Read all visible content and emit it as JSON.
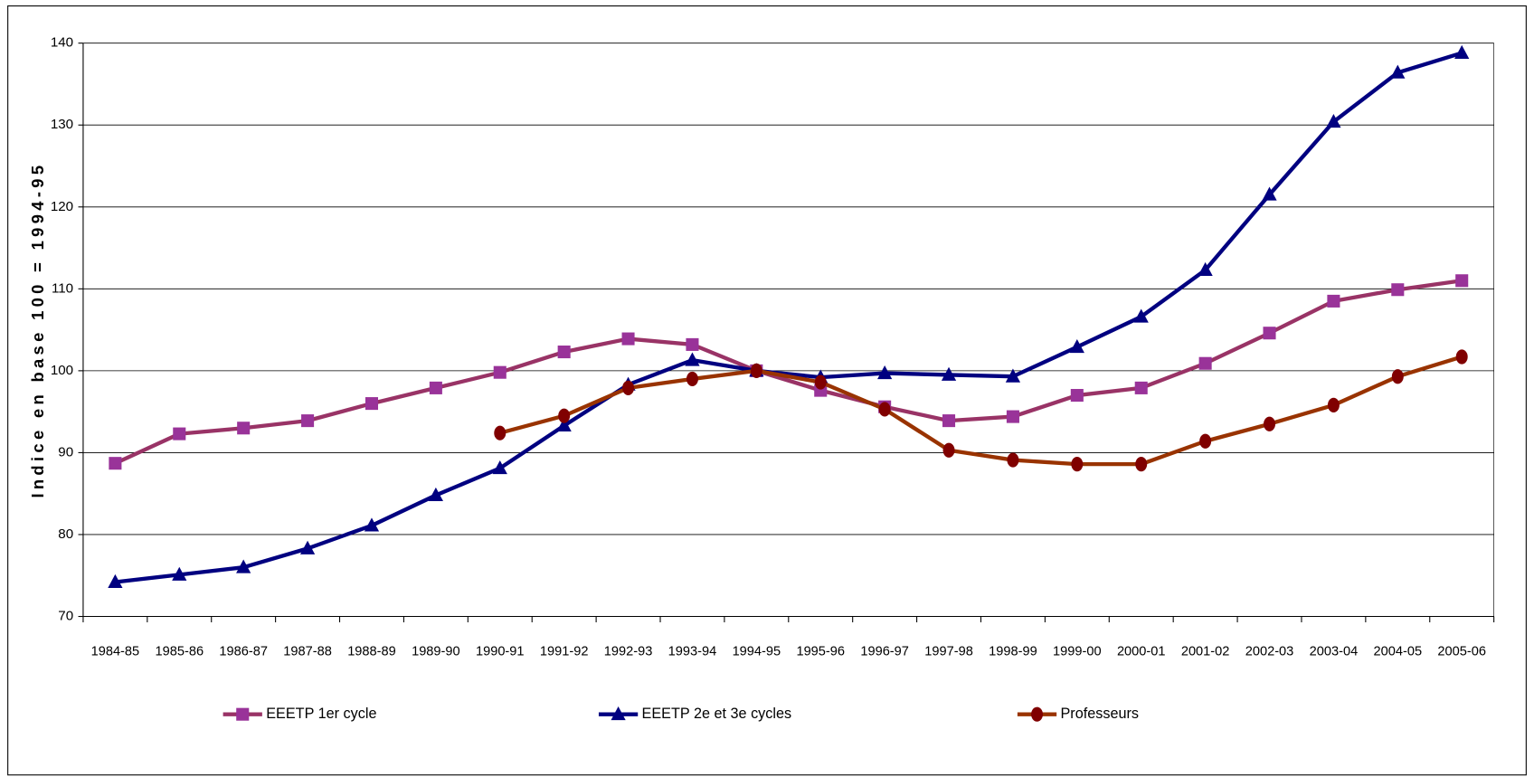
{
  "chart_data": {
    "type": "line",
    "y_label": "Indice en base 100 = 1994-95",
    "categories": [
      "1984-85",
      "1985-86",
      "1986-87",
      "1987-88",
      "1988-89",
      "1989-90",
      "1990-91",
      "1991-92",
      "1992-93",
      "1993-94",
      "1994-95",
      "1995-96",
      "1996-97",
      "1997-98",
      "1998-99",
      "1999-00",
      "2000-01",
      "2001-02",
      "2002-03",
      "2003-04",
      "2004-05",
      "2005-06"
    ],
    "series": [
      {
        "name": "EEETP 1er cycle",
        "color": "#993366",
        "marker": "square",
        "marker_color": "#993399",
        "values": [
          88.7,
          92.3,
          93,
          93.9,
          96,
          97.9,
          99.8,
          102.3,
          103.9,
          103.2,
          100,
          97.6,
          95.6,
          93.9,
          94.4,
          97,
          97.9,
          100.9,
          104.6,
          108.5,
          109.9,
          111
        ]
      },
      {
        "name": "EEETP 2e et 3e cycles",
        "color": "#000080",
        "marker": "triangle",
        "marker_color": "#000080",
        "values": [
          74.2,
          75.1,
          76,
          78.3,
          81.1,
          84.8,
          88.1,
          93.3,
          98.3,
          101.3,
          100,
          99.2,
          99.7,
          99.5,
          99.3,
          102.9,
          106.6,
          112.3,
          121.5,
          130.4,
          136.4,
          138.8
        ]
      },
      {
        "name": "Professeurs",
        "color": "#993300",
        "marker": "circle",
        "marker_color": "#800000",
        "values": [
          null,
          null,
          null,
          null,
          null,
          null,
          92.4,
          94.5,
          97.9,
          99,
          100,
          98.6,
          95.3,
          90.3,
          89.1,
          88.6,
          88.6,
          91.4,
          93.5,
          95.8,
          99.3,
          101.7
        ]
      }
    ],
    "ylim": [
      70,
      140
    ],
    "yticks": [
      70,
      80,
      90,
      100,
      110,
      120,
      130,
      140
    ],
    "grid": true
  }
}
